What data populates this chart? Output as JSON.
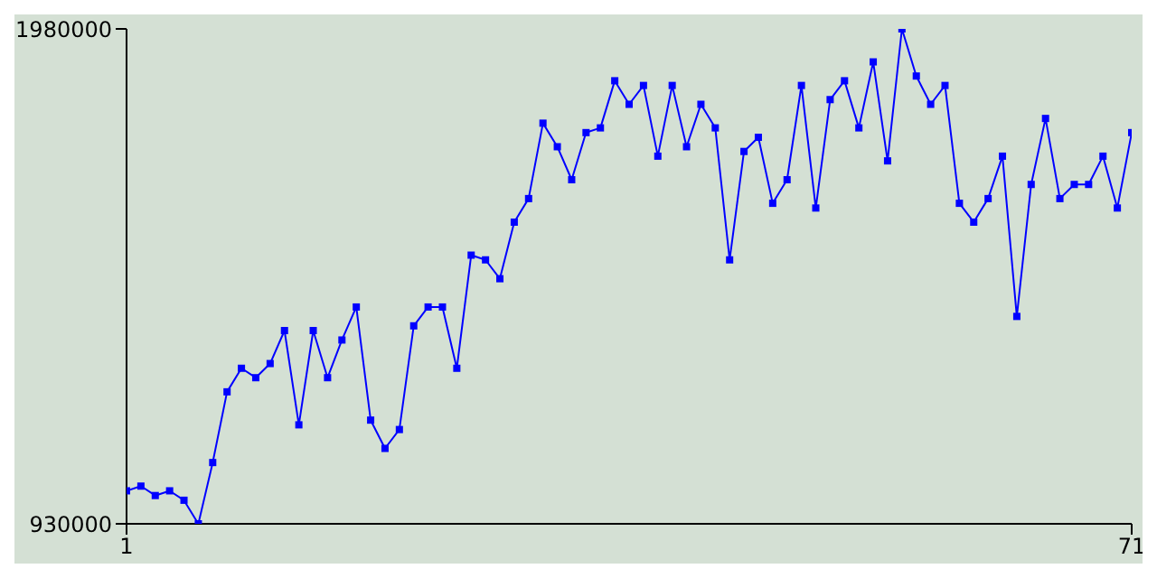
{
  "chart_data": {
    "type": "line",
    "x": [
      1,
      2,
      3,
      4,
      5,
      6,
      7,
      8,
      9,
      10,
      11,
      12,
      13,
      14,
      15,
      16,
      17,
      18,
      19,
      20,
      21,
      22,
      23,
      24,
      25,
      26,
      27,
      28,
      29,
      30,
      31,
      32,
      33,
      34,
      35,
      36,
      37,
      38,
      39,
      40,
      41,
      42,
      43,
      44,
      45,
      46,
      47,
      48,
      49,
      50,
      51,
      52,
      53,
      54,
      55,
      56,
      57,
      58,
      59,
      60,
      61,
      62,
      63,
      64,
      65,
      66,
      67,
      68,
      69,
      70,
      71
    ],
    "series": [
      {
        "color": "#0000ff",
        "values": [
          1000000,
          1010000,
          990000,
          1000000,
          980000,
          930000,
          1060000,
          1210000,
          1260000,
          1240000,
          1270000,
          1340000,
          1140000,
          1340000,
          1240000,
          1320000,
          1390000,
          1150000,
          1090000,
          1130000,
          1350000,
          1390000,
          1390000,
          1260000,
          1500000,
          1490000,
          1450000,
          1570000,
          1620000,
          1780000,
          1730000,
          1660000,
          1760000,
          1770000,
          1870000,
          1820000,
          1860000,
          1710000,
          1860000,
          1730000,
          1820000,
          1770000,
          1490000,
          1720000,
          1750000,
          1610000,
          1660000,
          1860000,
          1600000,
          1830000,
          1870000,
          1770000,
          1910000,
          1700000,
          1980000,
          1880000,
          1820000,
          1860000,
          1610000,
          1570000,
          1620000,
          1710000,
          1370000,
          1650000,
          1790000,
          1620000,
          1650000,
          1650000,
          1710000,
          1600000,
          1760000
        ]
      }
    ],
    "xlim": [
      1,
      71
    ],
    "xticks": [
      1,
      71
    ],
    "ylim": [
      930000,
      1980000
    ],
    "yticks": [
      930000,
      1980000
    ],
    "marker": "square",
    "line_style": "solid",
    "grid": false,
    "legend": false
  }
}
